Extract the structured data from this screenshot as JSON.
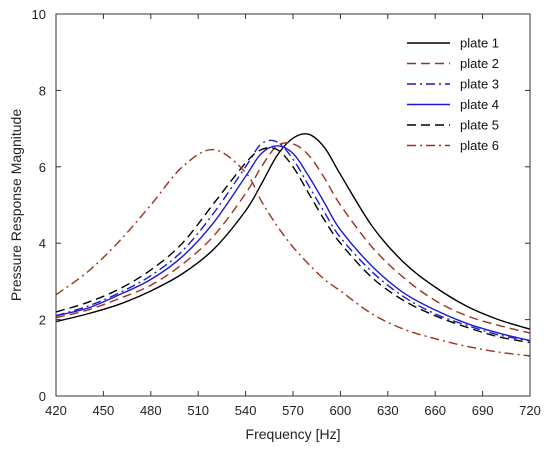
{
  "chart_data": {
    "type": "line",
    "title": "",
    "xlabel": "Frequency [Hz]",
    "ylabel": "Pressure Response Magnitude",
    "xlim": [
      420,
      720
    ],
    "ylim": [
      0,
      10
    ],
    "xticks": [
      420,
      450,
      480,
      510,
      540,
      570,
      600,
      630,
      660,
      690,
      720
    ],
    "yticks": [
      0,
      2,
      4,
      6,
      8,
      10
    ],
    "grid": false,
    "legend_position": "top-right",
    "x": [
      420,
      440,
      460,
      480,
      500,
      520,
      540,
      550,
      560,
      570,
      580,
      590,
      600,
      620,
      640,
      660,
      680,
      700,
      720
    ],
    "series": [
      {
        "name": "plate 1",
        "color": "#000000",
        "dash": "solid",
        "values": [
          1.95,
          2.15,
          2.4,
          2.75,
          3.2,
          3.85,
          4.85,
          5.55,
          6.3,
          6.75,
          6.85,
          6.5,
          5.8,
          4.45,
          3.5,
          2.85,
          2.35,
          2.0,
          1.75
        ]
      },
      {
        "name": "plate 2",
        "color": "#a0301e",
        "dash": "dashed",
        "values": [
          2.05,
          2.25,
          2.55,
          2.9,
          3.45,
          4.2,
          5.3,
          6.0,
          6.55,
          6.6,
          6.3,
          5.7,
          5.0,
          3.9,
          3.1,
          2.5,
          2.1,
          1.85,
          1.65
        ]
      },
      {
        "name": "plate 3",
        "color": "#1a1ad6",
        "dash": "dashdot",
        "values": [
          2.1,
          2.35,
          2.7,
          3.15,
          3.8,
          4.8,
          6.0,
          6.6,
          6.65,
          6.2,
          5.5,
          4.8,
          4.15,
          3.25,
          2.6,
          2.15,
          1.85,
          1.6,
          1.45
        ]
      },
      {
        "name": "plate 4",
        "color": "#1a1ad6",
        "dash": "solid",
        "values": [
          2.1,
          2.3,
          2.65,
          3.05,
          3.65,
          4.55,
          5.75,
          6.35,
          6.55,
          6.35,
          5.75,
          5.05,
          4.35,
          3.4,
          2.7,
          2.25,
          1.9,
          1.65,
          1.45
        ]
      },
      {
        "name": "plate 5",
        "color": "#000000",
        "dash": "dashed",
        "values": [
          2.2,
          2.45,
          2.8,
          3.3,
          4.0,
          5.05,
          6.1,
          6.45,
          6.45,
          6.0,
          5.3,
          4.6,
          4.0,
          3.1,
          2.5,
          2.1,
          1.8,
          1.55,
          1.4
        ]
      },
      {
        "name": "plate 6",
        "color": "#a0301e",
        "dash": "dashdot",
        "values": [
          2.65,
          3.25,
          4.05,
          5.0,
          6.0,
          6.45,
          5.85,
          5.1,
          4.45,
          3.9,
          3.45,
          3.05,
          2.75,
          2.15,
          1.75,
          1.5,
          1.3,
          1.15,
          1.05
        ]
      }
    ]
  }
}
